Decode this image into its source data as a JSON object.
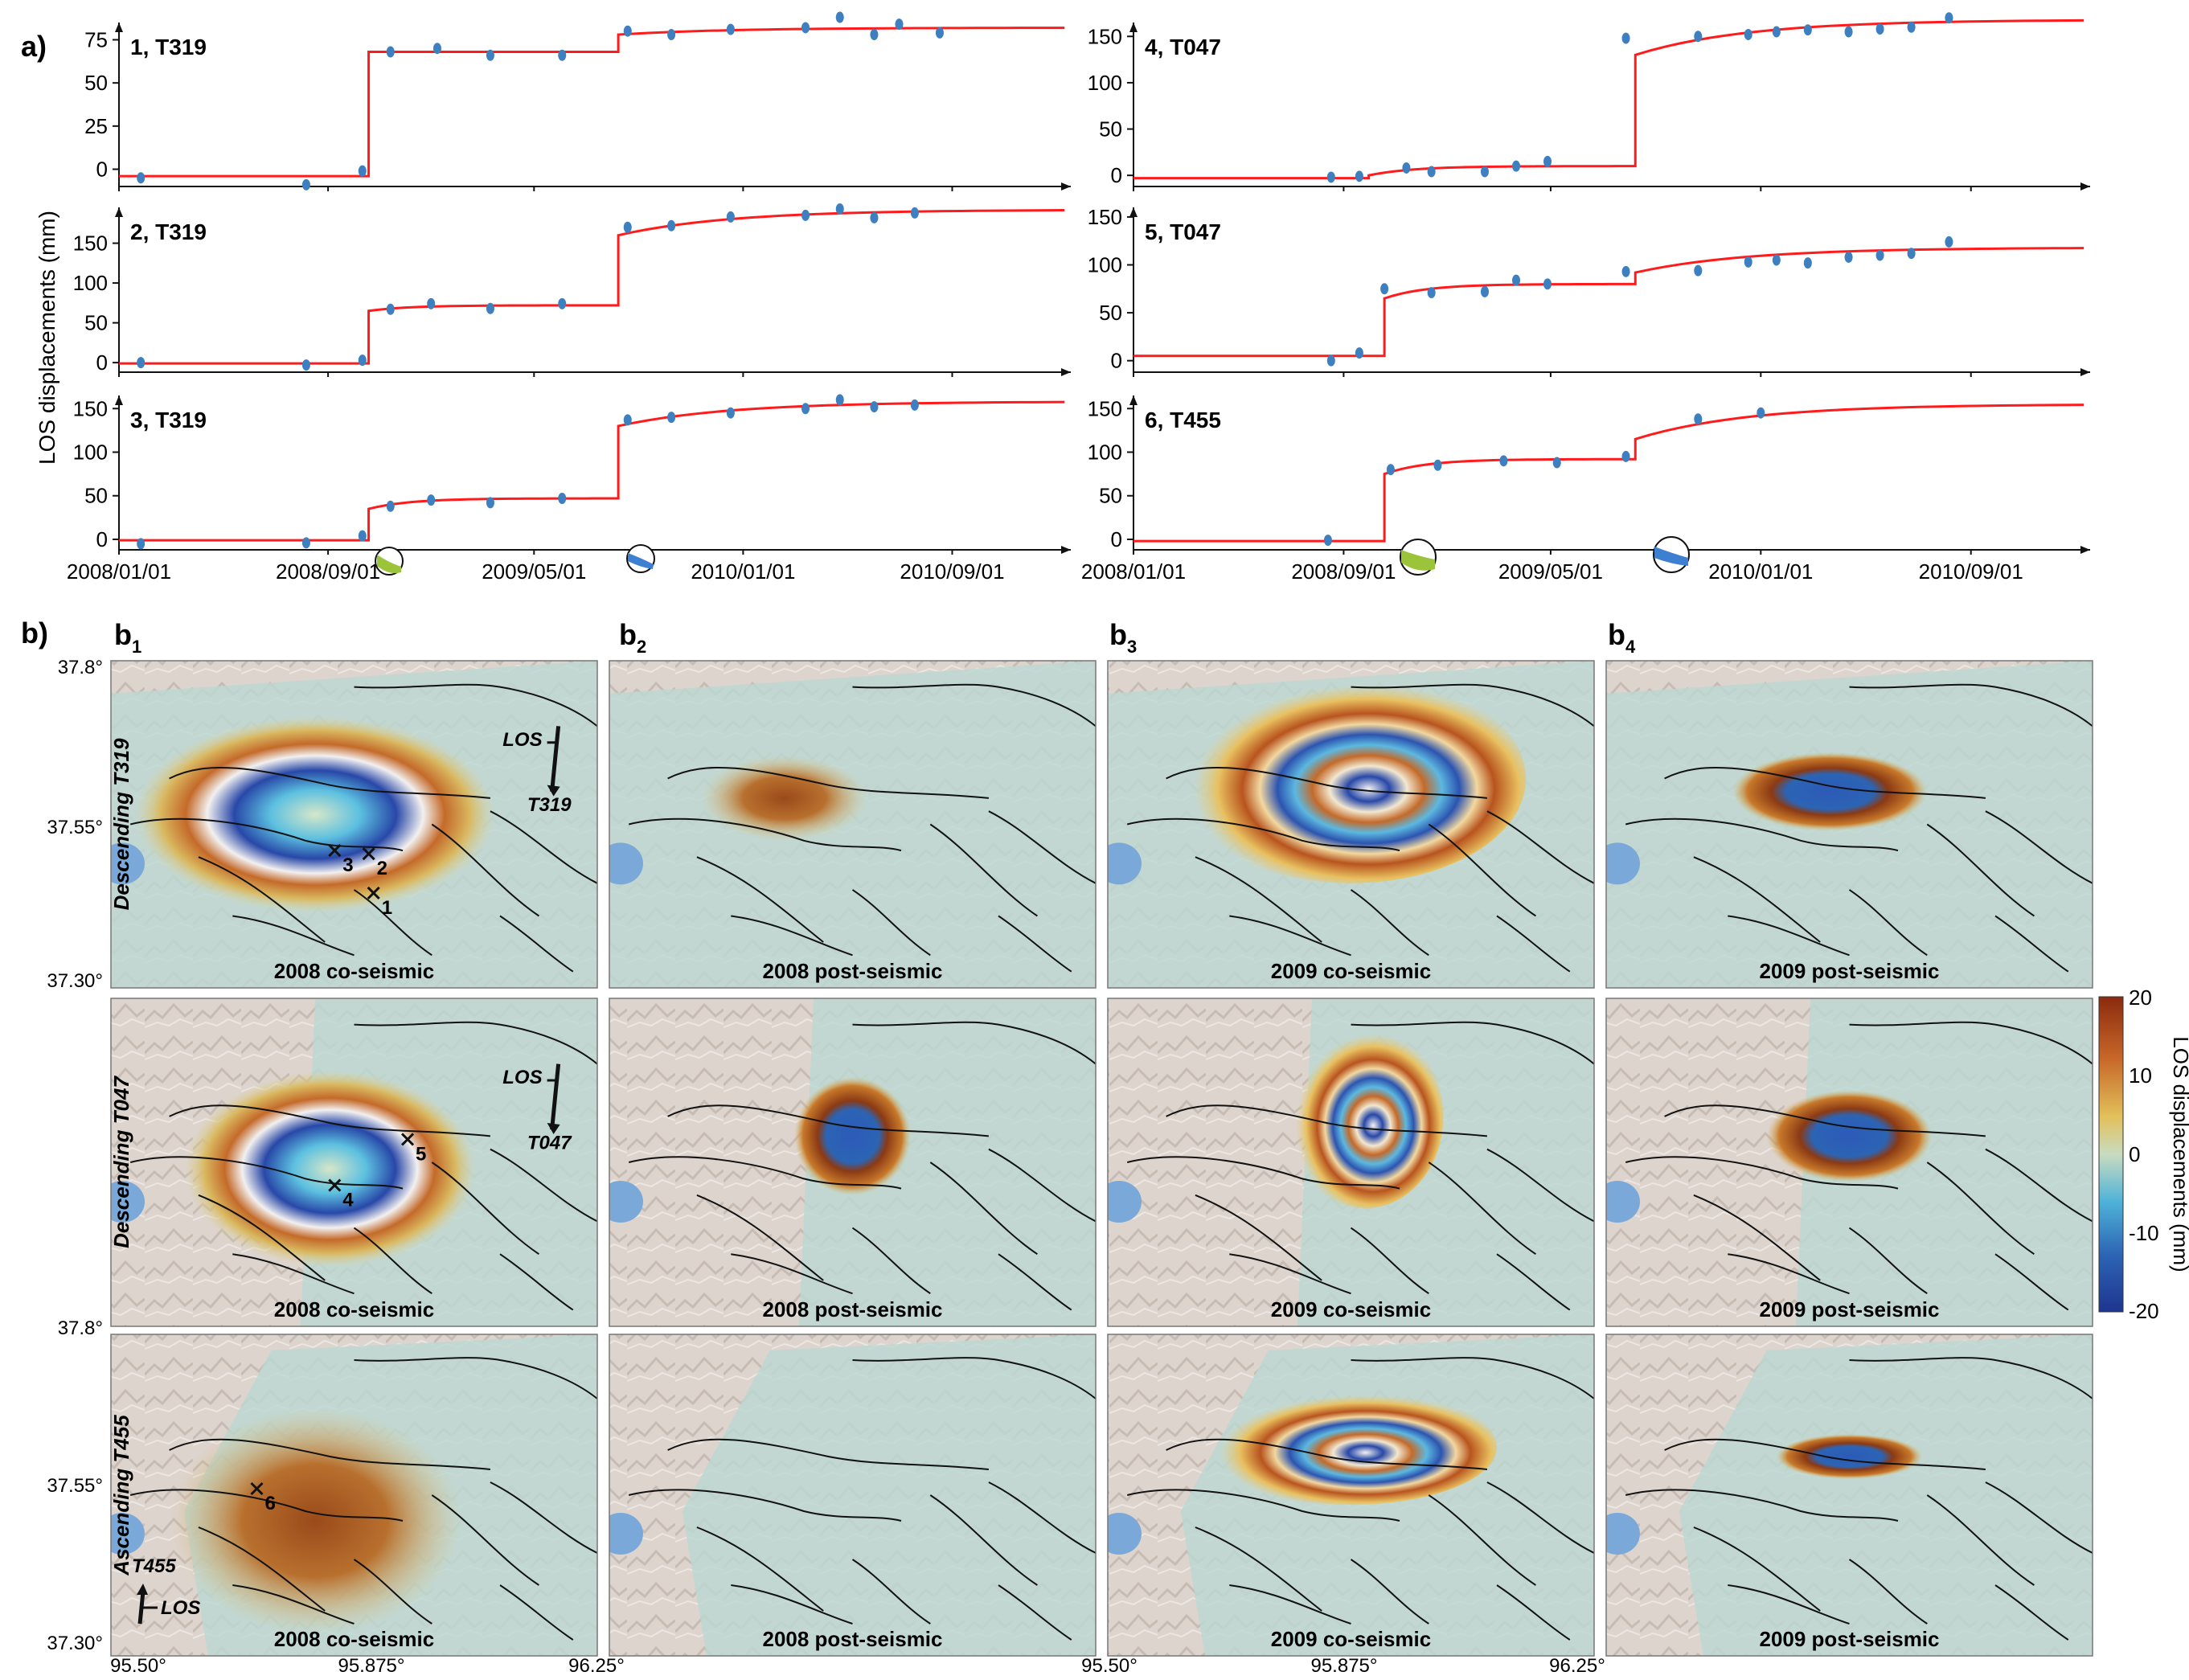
{
  "figure": {
    "panel_a_label": "a)",
    "panel_b_label": "b)",
    "ylabel": "LOS displacements (mm)",
    "b_columns": [
      {
        "letter": "b",
        "sub": "1"
      },
      {
        "letter": "b",
        "sub": "2"
      },
      {
        "letter": "b",
        "sub": "3"
      },
      {
        "letter": "b",
        "sub": "4"
      }
    ],
    "row_labels": [
      "Descending T319",
      "Descending T047",
      "Ascending T455"
    ],
    "map_captions": [
      "2008 co-seismic",
      "2008 post-seismic",
      "2009 co-seismic",
      "2009 post-seismic"
    ],
    "lat_labels": [
      "37.8°",
      "37.55°",
      "37.30°"
    ],
    "lon_labels": [
      "95.50°",
      "95.875°",
      "96.25°"
    ],
    "los_label": "LOS",
    "track_labels": [
      "T319",
      "T047",
      "T455"
    ],
    "point_labels": [
      "1",
      "2",
      "3",
      "4",
      "5",
      "6"
    ],
    "colorbar": {
      "label": "LOS displacements (mm)",
      "ticks": [
        "20",
        "10",
        "0",
        "-10",
        "-20"
      ],
      "colors": [
        "#8b2a0e",
        "#c8692a",
        "#e2c05a",
        "#c8dcc0",
        "#4fb2d8",
        "#2c64b4",
        "#1f3590"
      ]
    },
    "colors": {
      "fit": "#ff1b1b",
      "data": "#3d7fbf",
      "mech_green": "#9cc43a",
      "mech_blue": "#3d7fd0",
      "lake": "#7aa9d9",
      "terrain": "#ddd4ce"
    }
  },
  "chart_data": [
    {
      "type": "scatter",
      "title": "1, T319",
      "xlabel": "",
      "ylabel": "LOS displacements (mm)",
      "x": [
        "2008/01/01",
        "2008/09/01",
        "2010/01/01",
        "2010/09/01",
        "2009/05/01"
      ],
      "xtick_labels": [
        "2008/01/01",
        "2008/09/01",
        "2009/05/01",
        "2010/01/01",
        "2010/09/01"
      ],
      "ylim": [
        -10,
        85
      ],
      "yticks": [
        0,
        25,
        50,
        75
      ],
      "points_t": [
        2008.07,
        2008.6,
        2008.78,
        2008.87,
        2009.02,
        2009.19,
        2009.42,
        2009.63,
        2009.77,
        2009.96,
        2010.2,
        2010.31,
        2010.42,
        2010.5,
        2010.63
      ],
      "points_y": [
        -5,
        -9,
        -1,
        68,
        70,
        66,
        66,
        80,
        78,
        81,
        82,
        88,
        78,
        84,
        79
      ],
      "fit_steps": [
        {
          "t": 2008.8,
          "y0": -4,
          "y1": 68,
          "tail": 68
        },
        {
          "t": 2009.6,
          "y0": 68,
          "y1": 78,
          "tail": 82
        }
      ]
    },
    {
      "type": "scatter",
      "title": "2, T319",
      "ylim": [
        -12,
        195
      ],
      "yticks": [
        0,
        50,
        100,
        150
      ],
      "points_t": [
        2008.07,
        2008.6,
        2008.78,
        2008.87,
        2009.0,
        2009.19,
        2009.42,
        2009.63,
        2009.77,
        2009.96,
        2010.2,
        2010.31,
        2010.42,
        2010.55
      ],
      "points_y": [
        0,
        -3,
        3,
        67,
        74,
        68,
        74,
        170,
        172,
        183,
        185,
        193,
        182,
        188
      ],
      "fit_steps": [
        {
          "t": 2008.8,
          "y0": -1,
          "y1": 65,
          "tail": 72
        },
        {
          "t": 2009.6,
          "y0": 72,
          "y1": 160,
          "tail": 192
        }
      ]
    },
    {
      "type": "scatter",
      "title": "3, T319",
      "ylim": [
        -12,
        165
      ],
      "yticks": [
        0,
        50,
        100,
        150
      ],
      "points_t": [
        2008.07,
        2008.6,
        2008.78,
        2008.87,
        2009.0,
        2009.19,
        2009.42,
        2009.63,
        2009.77,
        2009.96,
        2010.2,
        2010.31,
        2010.42,
        2010.55
      ],
      "points_y": [
        -5,
        -4,
        4,
        38,
        45,
        42,
        47,
        137,
        140,
        145,
        150,
        160,
        152,
        154
      ],
      "fit_steps": [
        {
          "t": 2008.8,
          "y0": -1,
          "y1": 35,
          "tail": 47
        },
        {
          "t": 2009.6,
          "y0": 47,
          "y1": 130,
          "tail": 158
        }
      ]
    },
    {
      "type": "scatter",
      "title": "4, T047",
      "ylim": [
        -12,
        165
      ],
      "yticks": [
        0,
        50,
        100,
        150
      ],
      "points_t": [
        2008.63,
        2008.72,
        2008.87,
        2008.95,
        2009.12,
        2009.22,
        2009.32,
        2009.57,
        2009.8,
        2009.96,
        2010.05,
        2010.15,
        2010.28,
        2010.38,
        2010.48,
        2010.6
      ],
      "points_y": [
        -2,
        -1,
        8,
        4,
        4,
        10,
        15,
        148,
        150,
        152,
        155,
        157,
        155,
        158,
        160,
        170
      ],
      "fit_steps": [
        {
          "t": 2008.75,
          "y0": -3,
          "y1": 0,
          "tail": 10
        },
        {
          "t": 2009.6,
          "y0": 10,
          "y1": 130,
          "tail": 168
        }
      ]
    },
    {
      "type": "scatter",
      "title": "5, T047",
      "ylim": [
        -12,
        160
      ],
      "yticks": [
        0,
        50,
        100,
        150
      ],
      "points_t": [
        2008.63,
        2008.72,
        2008.8,
        2008.95,
        2009.12,
        2009.22,
        2009.32,
        2009.57,
        2009.8,
        2009.96,
        2010.05,
        2010.15,
        2010.28,
        2010.38,
        2010.48,
        2010.6
      ],
      "points_y": [
        0,
        8,
        75,
        71,
        72,
        84,
        80,
        93,
        94,
        103,
        105,
        102,
        108,
        110,
        112,
        124
      ],
      "fit_steps": [
        {
          "t": 2008.8,
          "y0": 5,
          "y1": 65,
          "tail": 80
        },
        {
          "t": 2009.6,
          "y0": 80,
          "y1": 92,
          "tail": 118
        }
      ]
    },
    {
      "type": "scatter",
      "title": "6, T455",
      "ylim": [
        -12,
        165
      ],
      "yticks": [
        0,
        50,
        100,
        150
      ],
      "points_t": [
        2008.62,
        2008.82,
        2008.97,
        2009.18,
        2009.35,
        2009.57,
        2009.8,
        2010.0
      ],
      "points_y": [
        -1,
        80,
        85,
        90,
        88,
        95,
        138,
        145
      ],
      "fit_steps": [
        {
          "t": 2008.8,
          "y0": -2,
          "y1": 75,
          "tail": 92
        },
        {
          "t": 2009.6,
          "y0": 92,
          "y1": 115,
          "tail": 155
        }
      ]
    }
  ]
}
